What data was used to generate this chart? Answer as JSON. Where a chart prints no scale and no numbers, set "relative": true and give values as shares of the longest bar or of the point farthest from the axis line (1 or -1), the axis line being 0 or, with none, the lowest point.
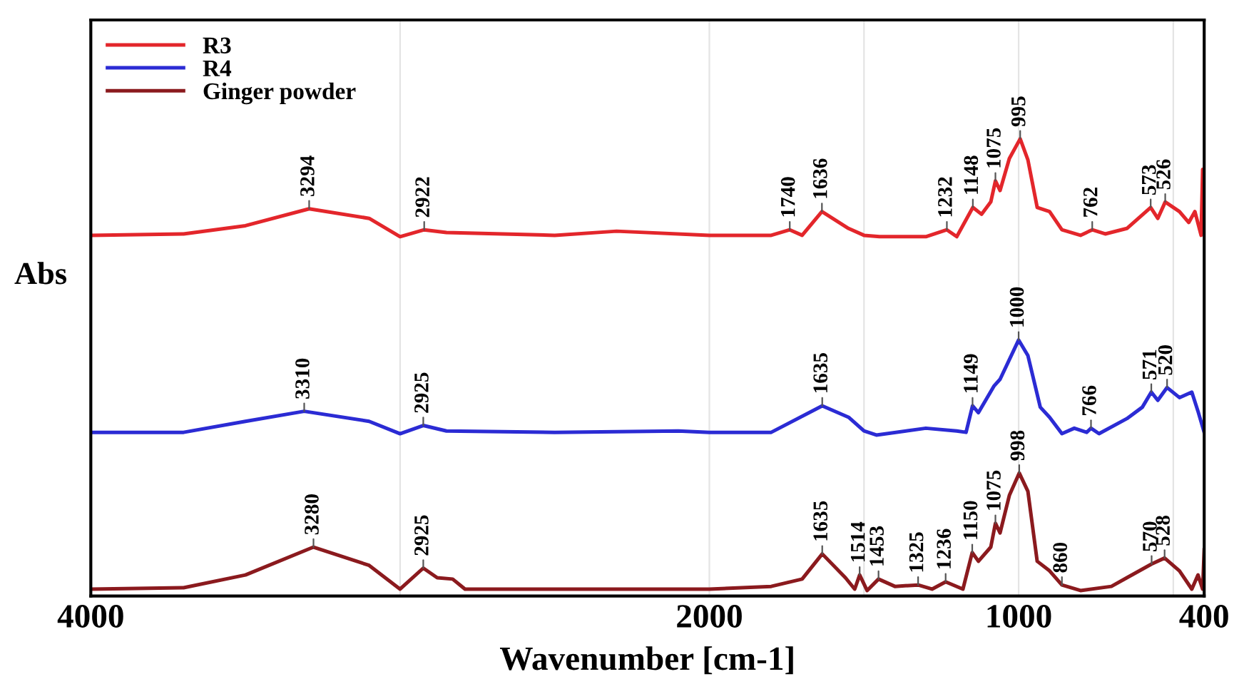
{
  "chart_data": {
    "type": "line",
    "relative": true,
    "xlabel": "Wavenumber [cm-1]",
    "ylabel": "Abs",
    "xlim": [
      4000,
      400
    ],
    "xticks": [
      4000,
      {
        "value": 3000,
        "label": null
      },
      2000,
      {
        "value": 1500,
        "label": null
      },
      1000,
      {
        "value": 500,
        "label": null
      },
      400
    ],
    "grid": "x",
    "legend": "top left",
    "tick_labels": "x",
    "line_style": "solid",
    "series": [
      {
        "name": "R3",
        "color": "#e3262b",
        "x": [
          4000,
          3700,
          3500,
          3294,
          3100,
          3000,
          2922,
          2850,
          2500,
          2300,
          2000,
          1800,
          1740,
          1700,
          1636,
          1550,
          1500,
          1450,
          1300,
          1232,
          1200,
          1148,
          1120,
          1090,
          1075,
          1060,
          1030,
          995,
          970,
          940,
          900,
          860,
          800,
          762,
          720,
          650,
          573,
          550,
          526,
          480,
          450,
          430,
          410,
          405,
          400
        ],
        "values": [
          0.789,
          0.792,
          0.81,
          0.847,
          0.826,
          0.786,
          0.801,
          0.795,
          0.789,
          0.798,
          0.789,
          0.789,
          0.801,
          0.789,
          0.841,
          0.804,
          0.789,
          0.786,
          0.786,
          0.801,
          0.786,
          0.85,
          0.835,
          0.862,
          0.908,
          0.887,
          0.957,
          1.0,
          0.954,
          0.85,
          0.841,
          0.801,
          0.789,
          0.801,
          0.792,
          0.804,
          0.85,
          0.826,
          0.862,
          0.841,
          0.817,
          0.841,
          0.789,
          0.933,
          0.795
        ]
      },
      {
        "name": "R4",
        "color": "#2b2bd4",
        "x": [
          4000,
          3700,
          3500,
          3310,
          3100,
          3000,
          2925,
          2850,
          2500,
          2100,
          2000,
          1800,
          1635,
          1550,
          1500,
          1460,
          1300,
          1200,
          1170,
          1149,
          1130,
          1080,
          1060,
          1000,
          970,
          930,
          900,
          860,
          820,
          780,
          766,
          740,
          650,
          600,
          571,
          550,
          520,
          480,
          440,
          420,
          400
        ],
        "values": [
          0.358,
          0.358,
          0.382,
          0.404,
          0.382,
          0.355,
          0.373,
          0.361,
          0.358,
          0.361,
          0.358,
          0.358,
          0.416,
          0.391,
          0.361,
          0.352,
          0.367,
          0.361,
          0.358,
          0.416,
          0.401,
          0.459,
          0.474,
          0.56,
          0.526,
          0.413,
          0.391,
          0.355,
          0.367,
          0.358,
          0.367,
          0.355,
          0.388,
          0.413,
          0.446,
          0.428,
          0.456,
          0.434,
          0.446,
          0.404,
          0.358
        ]
      },
      {
        "name": "Ginger powder",
        "color": "#8b1a1e",
        "x": [
          4000,
          3700,
          3500,
          3280,
          3100,
          3000,
          2925,
          2880,
          2830,
          2790,
          2000,
          1800,
          1700,
          1635,
          1560,
          1530,
          1514,
          1490,
          1453,
          1400,
          1325,
          1280,
          1236,
          1180,
          1150,
          1130,
          1090,
          1075,
          1060,
          1030,
          998,
          970,
          940,
          900,
          860,
          800,
          700,
          650,
          570,
          528,
          480,
          440,
          420,
          405,
          400
        ],
        "values": [
          0.015,
          0.018,
          0.046,
          0.107,
          0.067,
          0.015,
          0.061,
          0.04,
          0.037,
          0.015,
          0.015,
          0.021,
          0.037,
          0.092,
          0.04,
          0.015,
          0.046,
          0.012,
          0.037,
          0.021,
          0.024,
          0.015,
          0.031,
          0.015,
          0.095,
          0.076,
          0.107,
          0.159,
          0.138,
          0.22,
          0.269,
          0.229,
          0.076,
          0.055,
          0.024,
          0.012,
          0.021,
          0.04,
          0.07,
          0.083,
          0.055,
          0.015,
          0.046,
          0.015,
          0.101
        ]
      }
    ],
    "annotations": [
      {
        "text": "3294",
        "x": 3294,
        "y": 0.847
      },
      {
        "text": "2922",
        "x": 2922,
        "y": 0.801
      },
      {
        "text": "1740",
        "x": 1740,
        "y": 0.801
      },
      {
        "text": "1636",
        "x": 1636,
        "y": 0.841
      },
      {
        "text": "1232",
        "x": 1232,
        "y": 0.801
      },
      {
        "text": "1148",
        "x": 1148,
        "y": 0.85
      },
      {
        "text": "1075",
        "x": 1075,
        "y": 0.908
      },
      {
        "text": "995",
        "x": 995,
        "y": 1.0
      },
      {
        "text": "762",
        "x": 762,
        "y": 0.801
      },
      {
        "text": "573",
        "x": 573,
        "y": 0.85
      },
      {
        "text": "526",
        "x": 526,
        "y": 0.862
      },
      {
        "text": "3310",
        "x": 3310,
        "y": 0.404
      },
      {
        "text": "2925",
        "x": 2925,
        "y": 0.373
      },
      {
        "text": "1635",
        "x": 1635,
        "y": 0.416
      },
      {
        "text": "1149",
        "x": 1149,
        "y": 0.416
      },
      {
        "text": "1000",
        "x": 1000,
        "y": 0.56
      },
      {
        "text": "766",
        "x": 766,
        "y": 0.367
      },
      {
        "text": "571",
        "x": 571,
        "y": 0.446
      },
      {
        "text": "520",
        "x": 520,
        "y": 0.456
      },
      {
        "text": "3280",
        "x": 3280,
        "y": 0.107
      },
      {
        "text": "2925",
        "x": 2925,
        "y": 0.061
      },
      {
        "text": "1635",
        "x": 1635,
        "y": 0.092
      },
      {
        "text": "1514",
        "x": 1514,
        "y": 0.046
      },
      {
        "text": "1453",
        "x": 1453,
        "y": 0.037
      },
      {
        "text": "1325",
        "x": 1325,
        "y": 0.024
      },
      {
        "text": "1236",
        "x": 1236,
        "y": 0.031
      },
      {
        "text": "1150",
        "x": 1150,
        "y": 0.095
      },
      {
        "text": "1075",
        "x": 1075,
        "y": 0.159
      },
      {
        "text": "998",
        "x": 998,
        "y": 0.269
      },
      {
        "text": "860",
        "x": 860,
        "y": 0.024
      },
      {
        "text": "570",
        "x": 570,
        "y": 0.07
      },
      {
        "text": "528",
        "x": 528,
        "y": 0.083
      }
    ]
  }
}
